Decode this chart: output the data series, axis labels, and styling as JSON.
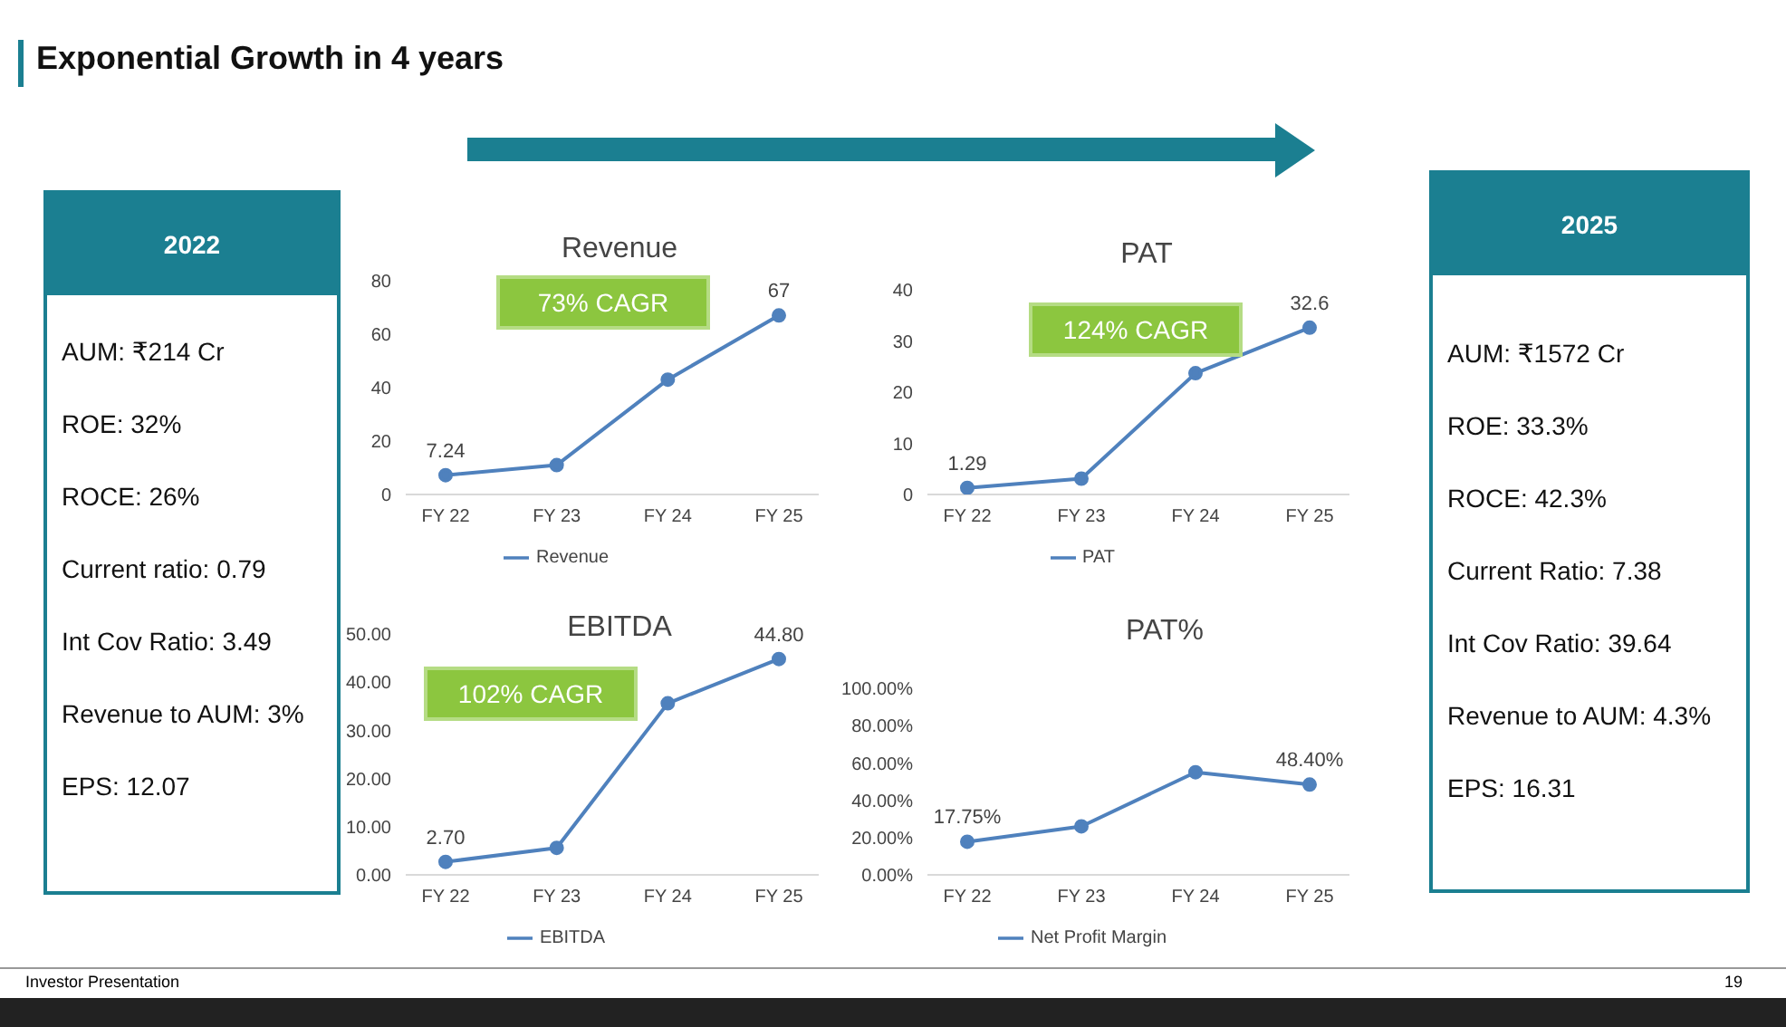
{
  "chart_data": [
    {
      "type": "other",
      "title": "Exponential Growth in 4 years",
      "annotations": [
        "Investor Presentation",
        "19"
      ]
    },
    {
      "type": "other",
      "title": "2022",
      "annotations": [
        "AUM: ₹214 Cr",
        "ROE: 32%",
        "ROCE: 26%",
        "Current ratio: 0.79",
        "Int Cov Ratio: 3.49",
        "Revenue to AUM: 3%",
        "EPS: 12.07"
      ]
    },
    {
      "type": "line",
      "title": "Revenue",
      "categories": [
        "FY 22",
        "FY 23",
        "FY 24",
        "FY 25"
      ],
      "series": [
        {
          "name": "Revenue",
          "color": "#4f81bd",
          "values": [
            7.24,
            11,
            43,
            67
          ],
          "value_labels": [
            "7.24",
            null,
            null,
            "67"
          ]
        }
      ],
      "ylim": [
        0,
        80
      ],
      "yticks": [
        0,
        20,
        40,
        60,
        80
      ],
      "legend": "bottom",
      "marker": "circle",
      "annotations": [
        "73% CAGR"
      ]
    },
    {
      "type": "line",
      "title": "PAT",
      "categories": [
        "FY 22",
        "FY 23",
        "FY 24",
        "FY 25"
      ],
      "series": [
        {
          "name": "PAT",
          "color": "#4f81bd",
          "values": [
            1.29,
            3.1,
            23.7,
            32.6
          ],
          "value_labels": [
            "1.29",
            null,
            null,
            "32.6"
          ]
        }
      ],
      "ylim": [
        0,
        40
      ],
      "yticks": [
        0,
        10,
        20,
        30,
        40
      ],
      "legend": "bottom",
      "marker": "circle",
      "annotations": [
        "124% CAGR"
      ]
    },
    {
      "type": "line",
      "title": "EBITDA",
      "categories": [
        "FY 22",
        "FY 23",
        "FY 24",
        "FY 25"
      ],
      "series": [
        {
          "name": "EBITDA",
          "color": "#4f81bd",
          "values": [
            2.7,
            5.6,
            35.6,
            44.8
          ],
          "value_labels": [
            "2.70",
            null,
            null,
            "44.80"
          ]
        }
      ],
      "ylim": [
        0,
        50
      ],
      "yticks": [
        {
          "value": 0,
          "label": "0.00"
        },
        {
          "value": 10,
          "label": "10.00"
        },
        {
          "value": 20,
          "label": "20.00"
        },
        {
          "value": 30,
          "label": "30.00"
        },
        {
          "value": 40,
          "label": "40.00"
        },
        {
          "value": 50,
          "label": "50.00"
        }
      ],
      "legend": "bottom",
      "marker": "circle",
      "annotations": [
        "102% CAGR"
      ]
    },
    {
      "type": "line",
      "title": "PAT%",
      "categories": [
        "FY 22",
        "FY 23",
        "FY 24",
        "FY 25"
      ],
      "series": [
        {
          "name": "Net Profit Margin",
          "color": "#4f81bd",
          "values": [
            17.75,
            26,
            55,
            48.4
          ],
          "value_labels": [
            "17.75%",
            null,
            null,
            "48.40%"
          ]
        }
      ],
      "ylim": [
        0,
        100
      ],
      "yticks": [
        {
          "value": 0,
          "label": "0.00%"
        },
        {
          "value": 20,
          "label": "20.00%"
        },
        {
          "value": 40,
          "label": "40.00%"
        },
        {
          "value": 60,
          "label": "60.00%"
        },
        {
          "value": 80,
          "label": "80.00%"
        },
        {
          "value": 100,
          "label": "100.00%"
        }
      ],
      "legend": "bottom",
      "marker": "circle"
    },
    {
      "type": "other",
      "title": "2025",
      "annotations": [
        "AUM: ₹1572 Cr",
        "ROE: 33.3%",
        "ROCE: 42.3%",
        "Current Ratio: 7.38",
        "Int Cov Ratio: 39.64",
        "Revenue to AUM: 4.3%",
        "EPS: 16.31"
      ]
    }
  ]
}
